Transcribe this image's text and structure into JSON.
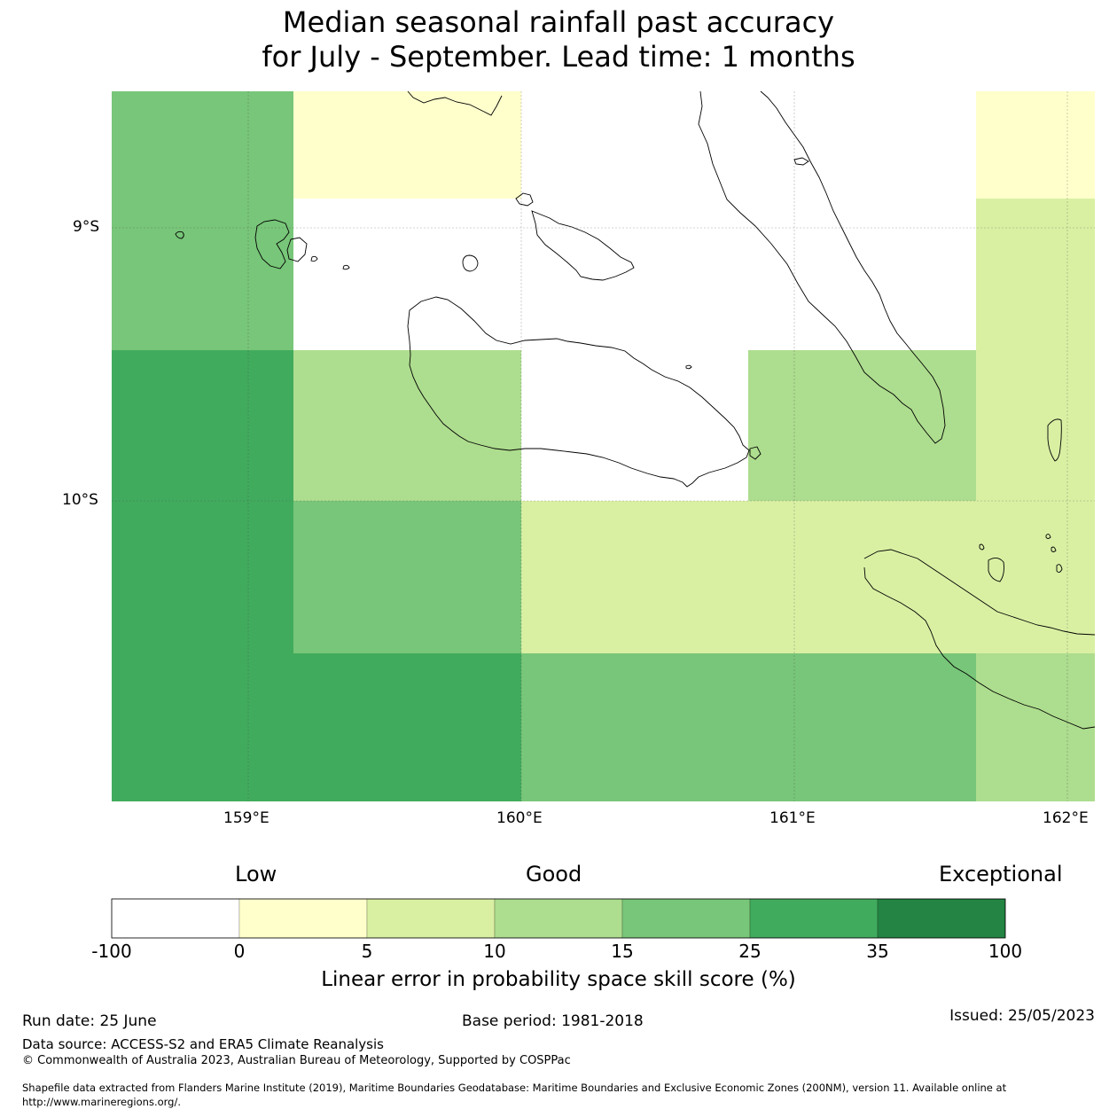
{
  "title": {
    "line1": "Median seasonal rainfall past accuracy",
    "line2": "for July - September. Lead time: 1 months"
  },
  "map": {
    "lat_labels": [
      "9°S",
      "10°S"
    ],
    "lon_labels": [
      "159°E",
      "160°E",
      "161°E",
      "162°E"
    ],
    "colors": {
      "-100_0": "#ffffff",
      "0_5": "#ffffcc",
      "5_10": "#d9f0a3",
      "10_15": "#addd8e",
      "15_25": "#78c679",
      "25_35": "#41ab5d",
      "35_100": "#238443",
      "coastline": "#000000"
    }
  },
  "colorbar": {
    "categories": [
      "Low",
      "Good",
      "Exceptional"
    ],
    "ticks": [
      "-100",
      "0",
      "5",
      "10",
      "15",
      "25",
      "35",
      "100"
    ],
    "label": "Linear error in probability space skill score (%)"
  },
  "footer": {
    "run_date": "Run date: 25 June",
    "base_period": "Base period: 1981-2018",
    "issued": "Issued: 25/05/2023",
    "data_source": "Data source: ACCESS-S2 and ERA5 Climate Reanalysis",
    "copyright": "© Commonwealth of Australia 2023, Australian Bureau of Meteorology, Supported by COSPPac",
    "shapefile_line1": "Shapefile data extracted from Flanders Marine Institute (2019), Maritime Boundaries Geodatabase: Maritime Boundaries and Exclusive Economic Zones (200NM), version 11. Available online at",
    "shapefile_line2": "http://www.marineregions.org/."
  }
}
